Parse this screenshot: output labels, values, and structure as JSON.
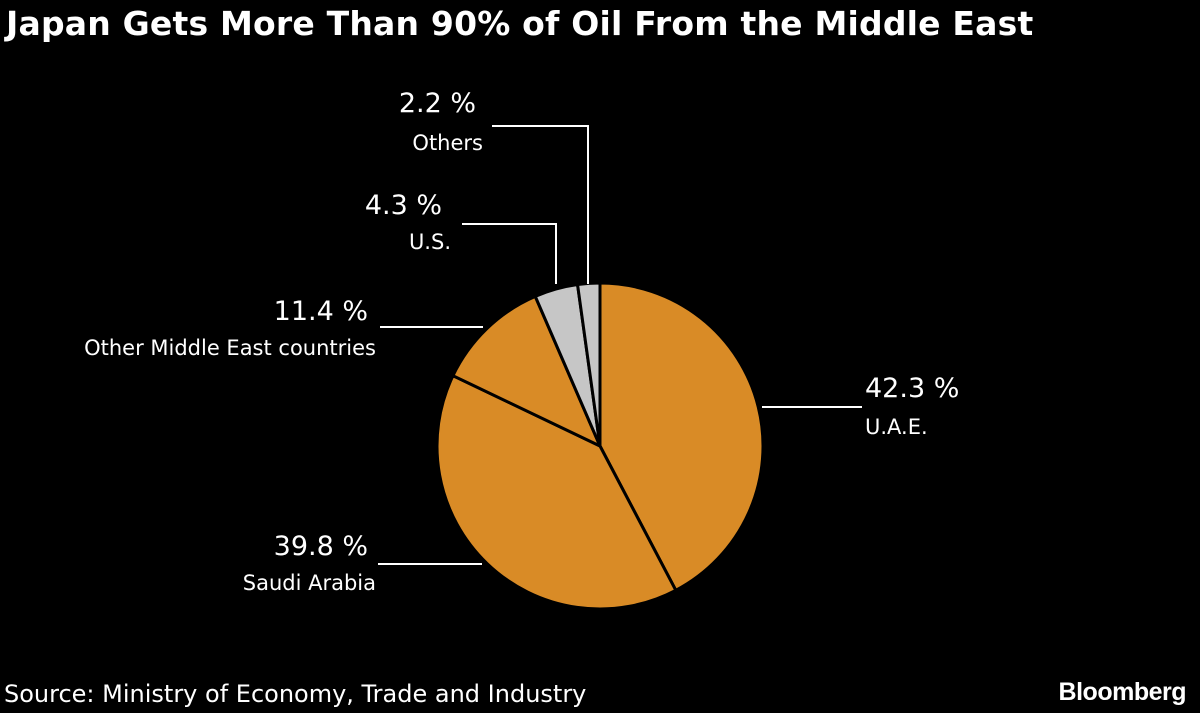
{
  "colors": {
    "background": "#000000",
    "middle_east": "#d98b26",
    "other": "#c6c6c6",
    "slice_border": "#000000",
    "text": "#ffffff"
  },
  "chart_data": {
    "type": "pie",
    "title": "Japan Gets More Than 90% of Oil From the Middle East",
    "slices": [
      {
        "name": "U.A.E.",
        "value": 42.3,
        "label": "42.3 %",
        "color": "#d98b26"
      },
      {
        "name": "Saudi Arabia",
        "value": 39.8,
        "label": "39.8 %",
        "color": "#d98b26"
      },
      {
        "name": "Other Middle East countries",
        "value": 11.4,
        "label": "11.4 %",
        "color": "#d98b26"
      },
      {
        "name": "U.S.",
        "value": 4.3,
        "label": "4.3 %",
        "color": "#c6c6c6"
      },
      {
        "name": "Others",
        "value": 2.2,
        "label": "2.2 %",
        "color": "#c6c6c6"
      }
    ]
  },
  "footer": {
    "source": "Source: Ministry of Economy, Trade and Industry",
    "brand": "Bloomberg"
  }
}
